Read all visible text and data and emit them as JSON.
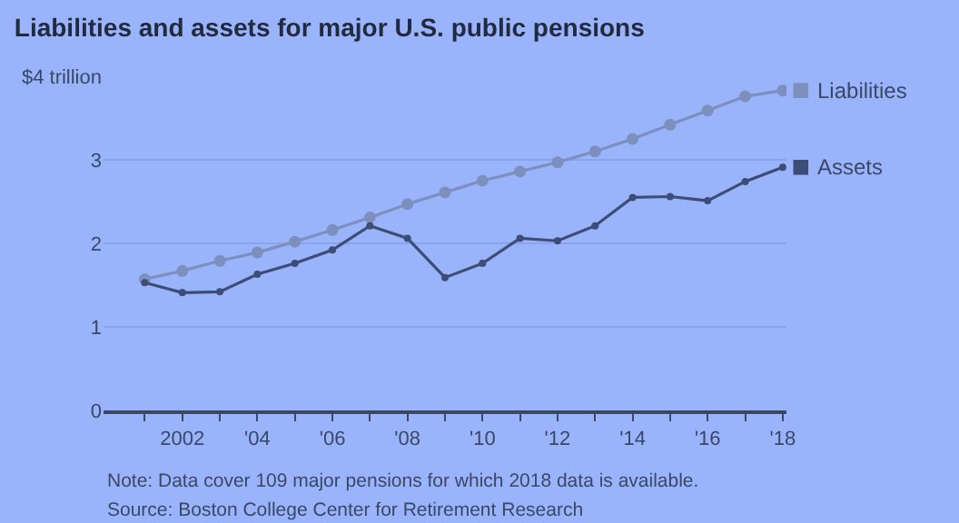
{
  "chart_data": {
    "type": "line",
    "title": "Liabilities and assets for major U.S. public pensions",
    "x": [
      2001,
      2002,
      2003,
      2004,
      2005,
      2006,
      2007,
      2008,
      2009,
      2010,
      2011,
      2012,
      2013,
      2014,
      2015,
      2016,
      2017,
      2018
    ],
    "series": [
      {
        "name": "Liabilities",
        "color": "#7d8fbd",
        "values": [
          1.57,
          1.67,
          1.79,
          1.89,
          2.02,
          2.16,
          2.31,
          2.47,
          2.61,
          2.75,
          2.86,
          2.97,
          3.1,
          3.25,
          3.42,
          3.59,
          3.76,
          3.83
        ]
      },
      {
        "name": "Assets",
        "color": "#3e4d75",
        "values": [
          1.53,
          1.41,
          1.42,
          1.63,
          1.76,
          1.92,
          2.21,
          2.06,
          1.59,
          1.76,
          2.06,
          2.03,
          2.21,
          2.55,
          2.56,
          2.51,
          2.74,
          2.91
        ]
      }
    ],
    "xlim": [
      1999.9,
      2018.1
    ],
    "xticks": [
      {
        "value": 2001,
        "label": null
      },
      {
        "value": 2002,
        "label": "2002"
      },
      {
        "value": 2003,
        "label": null
      },
      {
        "value": 2004,
        "label": "'04"
      },
      {
        "value": 2005,
        "label": null
      },
      {
        "value": 2006,
        "label": "'06"
      },
      {
        "value": 2007,
        "label": null
      },
      {
        "value": 2008,
        "label": "'08"
      },
      {
        "value": 2009,
        "label": null
      },
      {
        "value": 2010,
        "label": "'10"
      },
      {
        "value": 2011,
        "label": null
      },
      {
        "value": 2012,
        "label": "'12"
      },
      {
        "value": 2013,
        "label": null
      },
      {
        "value": 2014,
        "label": "'14"
      },
      {
        "value": 2015,
        "label": null
      },
      {
        "value": 2016,
        "label": "'16"
      },
      {
        "value": 2017,
        "label": null
      },
      {
        "value": 2018,
        "label": "'18"
      }
    ],
    "ylim": [
      0,
      4
    ],
    "yticks": [
      0,
      1,
      2,
      3,
      {
        "value": 4,
        "label": "$4 trillion"
      }
    ],
    "grid": "y",
    "legend": "right",
    "marker": "circle",
    "line_style": "solid",
    "annotations": [
      "Note: Data cover 109 major pensions for which 2018 data is available.",
      "Source: Boston College Center for Retirement Research"
    ]
  }
}
